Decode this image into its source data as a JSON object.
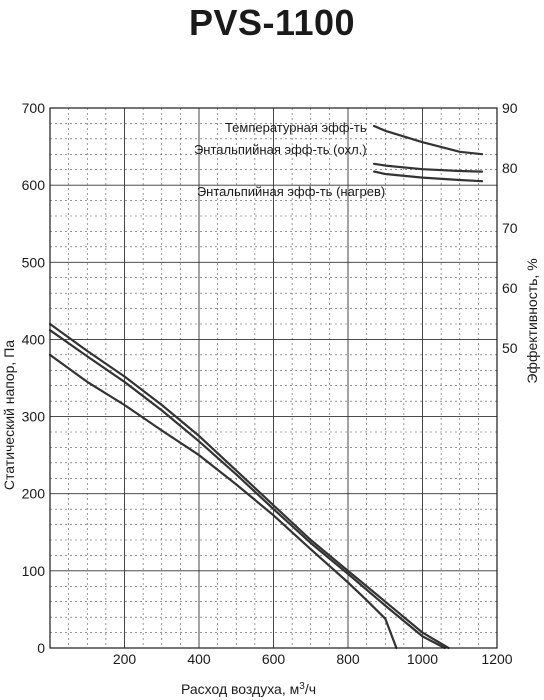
{
  "chart_data": {
    "type": "line",
    "title": "PVS-1100",
    "xlabel": "Расход воздуха, м³/ч",
    "ylabel": "Статический напор, Па",
    "y2label": "Эффективность, %",
    "xlim": [
      0,
      1200
    ],
    "ylim": [
      0,
      700
    ],
    "y2lim": [
      0,
      90
    ],
    "x_ticks": [
      "200",
      "400",
      "600",
      "800",
      "1000",
      "1200"
    ],
    "y_ticks": [
      "0",
      "100",
      "200",
      "300",
      "400",
      "500",
      "600",
      "700"
    ],
    "y2_ticks": [
      "50",
      "60",
      "70",
      "80",
      "90"
    ],
    "grid": true,
    "series": [
      {
        "axis": "left",
        "points": [
          [
            0,
            420
          ],
          [
            100,
            385
          ],
          [
            200,
            352
          ],
          [
            300,
            315
          ],
          [
            400,
            275
          ],
          [
            500,
            230
          ],
          [
            600,
            185
          ],
          [
            700,
            140
          ],
          [
            800,
            100
          ],
          [
            900,
            60
          ],
          [
            1000,
            20
          ],
          [
            1070,
            0
          ]
        ]
      },
      {
        "axis": "left",
        "points": [
          [
            0,
            412
          ],
          [
            100,
            378
          ],
          [
            200,
            345
          ],
          [
            300,
            308
          ],
          [
            400,
            268
          ],
          [
            500,
            225
          ],
          [
            600,
            180
          ],
          [
            700,
            136
          ],
          [
            800,
            96
          ],
          [
            900,
            55
          ],
          [
            1000,
            15
          ],
          [
            1060,
            0
          ]
        ]
      },
      {
        "axis": "left",
        "points": [
          [
            0,
            380
          ],
          [
            100,
            345
          ],
          [
            200,
            315
          ],
          [
            300,
            282
          ],
          [
            400,
            250
          ],
          [
            500,
            212
          ],
          [
            600,
            172
          ],
          [
            700,
            128
          ],
          [
            800,
            85
          ],
          [
            850,
            62
          ],
          [
            900,
            38
          ],
          [
            930,
            0
          ]
        ]
      },
      {
        "axis": "right",
        "label": "Температурная эфф-ть",
        "points": [
          [
            870,
            87
          ],
          [
            900,
            86.2
          ],
          [
            1000,
            84.3
          ],
          [
            1100,
            82.7
          ],
          [
            1160,
            82.3
          ]
        ]
      },
      {
        "axis": "right",
        "label": "Энтальпийная эфф-ть (охл.)",
        "points": [
          [
            870,
            80.7
          ],
          [
            900,
            80.4
          ],
          [
            1000,
            79.8
          ],
          [
            1100,
            79.5
          ],
          [
            1160,
            79.4
          ]
        ]
      },
      {
        "axis": "right",
        "label": "Энтальпийная эфф-ть (нагрев)",
        "points": [
          [
            870,
            79.4
          ],
          [
            900,
            79.0
          ],
          [
            1000,
            78.4
          ],
          [
            1100,
            78.0
          ],
          [
            1160,
            77.8
          ]
        ]
      }
    ]
  }
}
